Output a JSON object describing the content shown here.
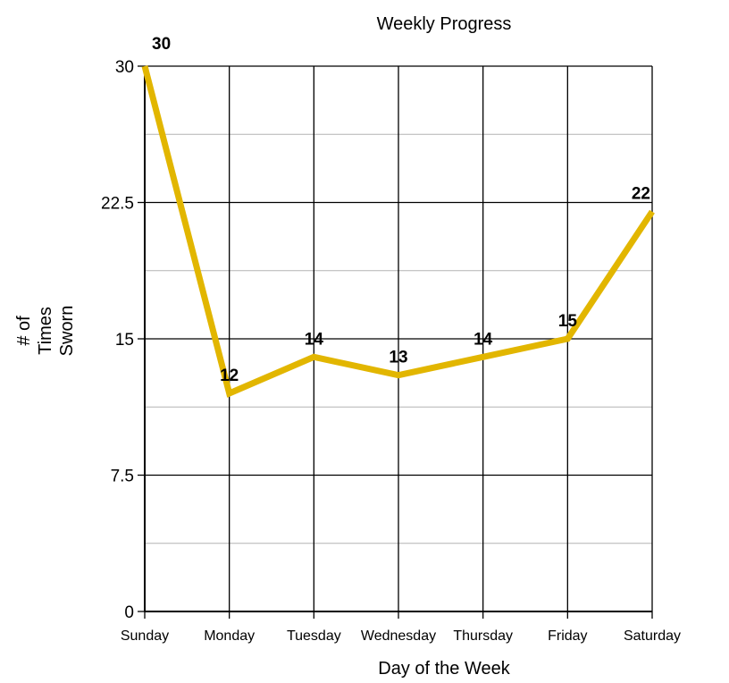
{
  "chart_data": {
    "type": "line",
    "title": "Weekly Progress",
    "xlabel": "Day of the Week",
    "ylabel_lines": [
      "# of",
      "Times",
      "Sworn"
    ],
    "categories": [
      "Sunday",
      "Monday",
      "Tuesday",
      "Wednesday",
      "Thursday",
      "Friday",
      "Saturday"
    ],
    "series": [
      {
        "values": [
          30,
          12,
          14,
          13,
          14,
          15,
          22
        ],
        "color": "#e2b600"
      }
    ],
    "data_labels": [
      "30",
      "12",
      "14",
      "13",
      "14",
      "15",
      "22"
    ],
    "ylim": [
      0,
      30
    ],
    "yticks": [
      0,
      7.5,
      15,
      22.5,
      30
    ],
    "ytick_labels": [
      "0",
      "7.5",
      "15",
      "22.5",
      "30"
    ],
    "minor_grid": [
      3.75,
      11.25,
      18.75,
      26.25
    ],
    "grid": true,
    "legend": false
  }
}
